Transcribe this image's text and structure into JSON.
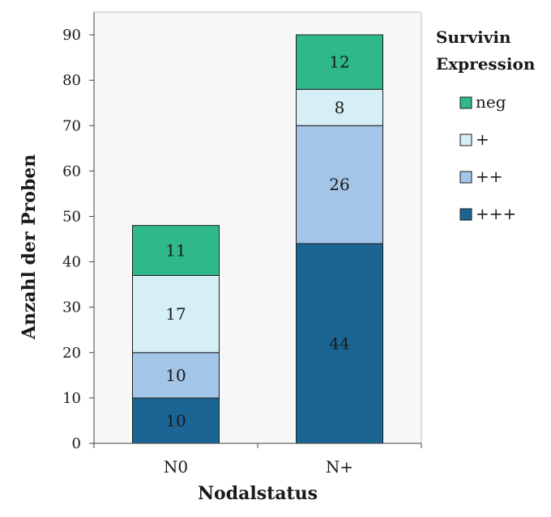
{
  "chart_data": {
    "type": "bar",
    "stacked": true,
    "categories": [
      "N0",
      "N+"
    ],
    "series": [
      {
        "name": "+++",
        "color": "#1a6594",
        "values": [
          10,
          44
        ]
      },
      {
        "name": "++",
        "color": "#a2c5e8",
        "values": [
          10,
          26
        ]
      },
      {
        "name": "+",
        "color": "#d6eef5",
        "values": [
          17,
          8
        ]
      },
      {
        "name": "neg",
        "color": "#2fb88a",
        "values": [
          11,
          12
        ]
      }
    ],
    "xlabel": "Nodalstatus",
    "ylabel": "Anzahl der Proben",
    "ylim": [
      0,
      95
    ],
    "yticks": [
      0,
      10,
      20,
      30,
      40,
      50,
      60,
      70,
      80,
      90
    ],
    "legend_title": "Survivin Expression",
    "legend_order": [
      "neg",
      "+",
      "++",
      "+++"
    ],
    "legend_position": "right",
    "grid": false,
    "plot_background": "#f7f7f7"
  }
}
